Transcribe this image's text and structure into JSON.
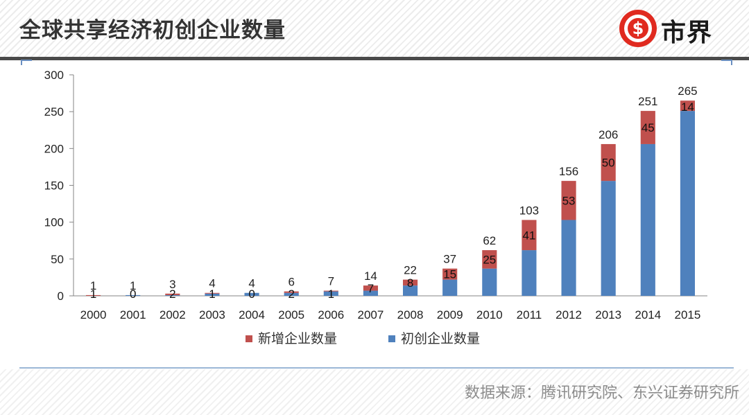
{
  "page": {
    "title": "全球共享经济初创企业数量",
    "logo_text": "市界",
    "logo_symbol": "$",
    "source": "数据来源：腾讯研究院、东兴证券研究所"
  },
  "colors": {
    "existing": "#4f81bd",
    "new": "#c0504d",
    "logo_red": "#e02a1f"
  },
  "chart_data": {
    "type": "bar",
    "stacked": true,
    "title": "",
    "xlabel": "",
    "ylabel": "",
    "categories": [
      "2000",
      "2001",
      "2002",
      "2003",
      "2004",
      "2005",
      "2006",
      "2007",
      "2008",
      "2009",
      "2010",
      "2011",
      "2012",
      "2013",
      "2014",
      "2015"
    ],
    "ylim": [
      0,
      300
    ],
    "yticks": [
      0,
      50,
      100,
      150,
      200,
      250,
      300
    ],
    "series": [
      {
        "name": "初创企业数量",
        "color": "#4f81bd",
        "values": [
          0,
          1,
          1,
          3,
          4,
          4,
          6,
          7,
          14,
          22,
          37,
          62,
          103,
          156,
          206,
          251
        ]
      },
      {
        "name": "新增企业数量",
        "color": "#c0504d",
        "values": [
          1,
          0,
          2,
          1,
          0,
          2,
          1,
          7,
          8,
          15,
          25,
          41,
          53,
          50,
          45,
          14
        ]
      }
    ],
    "totals": [
      1,
      1,
      3,
      4,
      4,
      6,
      7,
      14,
      22,
      37,
      62,
      103,
      156,
      206,
      251,
      265
    ],
    "legend": {
      "position": "bottom",
      "order": [
        "新增企业数量",
        "初创企业数量"
      ]
    },
    "grid": false
  }
}
